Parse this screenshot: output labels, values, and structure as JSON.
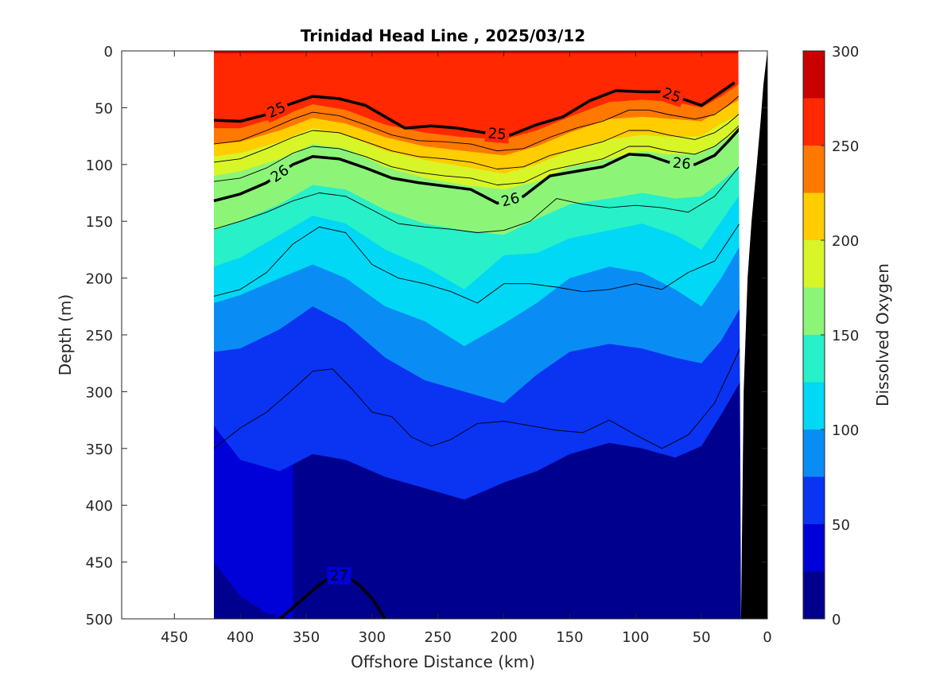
{
  "chart_data": {
    "type": "heatmap",
    "subtype": "filled-contour section",
    "title": "Trinidad Head Line , 2025/03/12",
    "xlabel": "Offshore Distance (km)",
    "ylabel": "Depth (m)",
    "colorbar_label": "Dissolved Oxygen",
    "xlim": [
      490,
      0
    ],
    "ylim": [
      500,
      0
    ],
    "x_reversed": true,
    "y_reversed": true,
    "x_ticks": [
      "450",
      "400",
      "350",
      "300",
      "250",
      "200",
      "150",
      "100",
      "50",
      "0"
    ],
    "y_ticks": [
      "0",
      "50",
      "100",
      "150",
      "200",
      "250",
      "300",
      "350",
      "400",
      "450",
      "500"
    ],
    "colorbar_ticks": [
      "0",
      "50",
      "100",
      "150",
      "200",
      "250",
      "300"
    ],
    "colorbar_levels": [
      {
        "from": 0,
        "to": 25,
        "color": "#00008e"
      },
      {
        "from": 25,
        "to": 50,
        "color": "#0000d8"
      },
      {
        "from": 50,
        "to": 75,
        "color": "#0a33f2"
      },
      {
        "from": 75,
        "to": 100,
        "color": "#0a8cf5"
      },
      {
        "from": 100,
        "to": 125,
        "color": "#00d8f5"
      },
      {
        "from": 125,
        "to": 150,
        "color": "#28f0c8"
      },
      {
        "from": 150,
        "to": 175,
        "color": "#8cf578"
      },
      {
        "from": 175,
        "to": 200,
        "color": "#d8f528"
      },
      {
        "from": 200,
        "to": 225,
        "color": "#ffcd00"
      },
      {
        "from": 225,
        "to": 250,
        "color": "#ff7800"
      },
      {
        "from": 250,
        "to": 275,
        "color": "#ff2800"
      },
      {
        "from": 275,
        "to": 300,
        "color": "#c80000"
      }
    ],
    "data_extent_km": [
      420,
      20
    ],
    "oxygen_boundaries": [
      {
        "value": 275,
        "x": [
          420,
          20
        ],
        "depth": [
          2,
          2
        ]
      },
      {
        "value": 250,
        "x": [
          420,
          400,
          370,
          345,
          320,
          290,
          260,
          230,
          200,
          175,
          150,
          120,
          95,
          70,
          50,
          35,
          20
        ],
        "depth": [
          68,
          68,
          58,
          47,
          52,
          65,
          72,
          76,
          78,
          70,
          58,
          45,
          43,
          45,
          50,
          40,
          28
        ]
      },
      {
        "value": 225,
        "x": [
          420,
          400,
          370,
          345,
          320,
          290,
          260,
          230,
          200,
          175,
          150,
          120,
          95,
          70,
          50,
          35,
          20
        ],
        "depth": [
          82,
          80,
          70,
          59,
          64,
          76,
          84,
          88,
          92,
          84,
          72,
          60,
          58,
          60,
          62,
          52,
          42
        ]
      },
      {
        "value": 200,
        "x": [
          420,
          400,
          370,
          345,
          320,
          290,
          260,
          230,
          200,
          175,
          150,
          120,
          95,
          70,
          50,
          35,
          20
        ],
        "depth": [
          93,
          90,
          80,
          68,
          74,
          88,
          96,
          102,
          108,
          100,
          88,
          78,
          74,
          76,
          75,
          64,
          55
        ]
      },
      {
        "value": 175,
        "x": [
          420,
          400,
          370,
          345,
          320,
          290,
          260,
          230,
          200,
          175,
          150,
          120,
          95,
          70,
          50,
          35,
          20
        ],
        "depth": [
          110,
          106,
          95,
          82,
          86,
          102,
          112,
          118,
          122,
          115,
          102,
          95,
          88,
          92,
          90,
          80,
          70
        ]
      },
      {
        "value": 150,
        "x": [
          420,
          400,
          370,
          345,
          320,
          290,
          260,
          230,
          200,
          175,
          150,
          120,
          95,
          70,
          50,
          35,
          20
        ],
        "depth": [
          158,
          150,
          135,
          118,
          122,
          140,
          152,
          158,
          162,
          148,
          135,
          130,
          125,
          130,
          128,
          115,
          100
        ]
      },
      {
        "value": 125,
        "x": [
          420,
          400,
          370,
          345,
          320,
          290,
          260,
          230,
          200,
          175,
          150,
          120,
          95,
          70,
          50,
          35,
          20
        ],
        "depth": [
          190,
          182,
          162,
          145,
          152,
          175,
          190,
          210,
          180,
          178,
          165,
          158,
          152,
          162,
          175,
          150,
          125
        ]
      },
      {
        "value": 100,
        "x": [
          420,
          400,
          370,
          345,
          320,
          290,
          260,
          230,
          200,
          175,
          150,
          120,
          95,
          70,
          50,
          35,
          20
        ],
        "depth": [
          222,
          215,
          200,
          188,
          200,
          225,
          238,
          260,
          240,
          222,
          200,
          190,
          195,
          210,
          225,
          200,
          170
        ]
      },
      {
        "value": 75,
        "x": [
          420,
          400,
          370,
          345,
          320,
          290,
          260,
          230,
          200,
          175,
          150,
          120,
          95,
          70,
          50,
          35,
          20
        ],
        "depth": [
          265,
          262,
          245,
          225,
          240,
          270,
          290,
          300,
          310,
          285,
          265,
          258,
          262,
          270,
          275,
          255,
          225
        ]
      },
      {
        "value": 50,
        "x": [
          420,
          400,
          370,
          345,
          320,
          290,
          260,
          230,
          200,
          175,
          150,
          120,
          95,
          70,
          50,
          35,
          20
        ],
        "depth": [
          330,
          360,
          370,
          355,
          360,
          375,
          385,
          395,
          380,
          370,
          355,
          345,
          350,
          358,
          348,
          320,
          290
        ]
      },
      {
        "value": 25,
        "x": [
          420,
          400,
          380,
          360
        ],
        "depth": [
          450,
          480,
          495,
          500
        ]
      }
    ],
    "density_isolines": [
      {
        "label": "25",
        "bold": true,
        "x": [
          420,
          400,
          380,
          365,
          345,
          325,
          305,
          290,
          275,
          255,
          235,
          215,
          195,
          175,
          155,
          135,
          115,
          95,
          80,
          65,
          50,
          35,
          25
        ],
        "depth": [
          61,
          62,
          56,
          48,
          40,
          42,
          48,
          58,
          68,
          66,
          68,
          72,
          74,
          65,
          58,
          44,
          35,
          36,
          36,
          42,
          48,
          36,
          28
        ]
      },
      {
        "label": "26",
        "bold": true,
        "x": [
          420,
          400,
          380,
          360,
          345,
          325,
          305,
          285,
          265,
          245,
          225,
          205,
          185,
          165,
          145,
          125,
          105,
          90,
          75,
          55,
          40,
          30,
          20
        ],
        "depth": [
          132,
          126,
          116,
          100,
          93,
          95,
          103,
          112,
          116,
          119,
          122,
          134,
          128,
          110,
          106,
          102,
          91,
          92,
          98,
          100,
          92,
          80,
          67
        ]
      },
      {
        "label": "27",
        "bold": true,
        "x": [
          370,
          355,
          340,
          330,
          320,
          310,
          300,
          290
        ],
        "depth": [
          500,
          485,
          470,
          462,
          462,
          470,
          482,
          500
        ]
      },
      {
        "label": "",
        "bold": false,
        "x": [
          420,
          400,
          380,
          360,
          345,
          325,
          305,
          285,
          265,
          245,
          225,
          205,
          185,
          165,
          145,
          125,
          105,
          90,
          75,
          55,
          40,
          30,
          20
        ],
        "depth": [
          82,
          79,
          70,
          60,
          54,
          57,
          65,
          74,
          79,
          80,
          82,
          88,
          86,
          76,
          68,
          62,
          52,
          52,
          56,
          60,
          56,
          48,
          38
        ]
      },
      {
        "label": "",
        "bold": false,
        "x": [
          420,
          400,
          380,
          360,
          345,
          325,
          305,
          285,
          265,
          245,
          225,
          205,
          185,
          165,
          145,
          125,
          105,
          90,
          75,
          55,
          40,
          30,
          20
        ],
        "depth": [
          98,
          95,
          86,
          76,
          70,
          72,
          80,
          88,
          93,
          95,
          98,
          104,
          102,
          92,
          86,
          80,
          70,
          70,
          74,
          78,
          72,
          64,
          54
        ]
      },
      {
        "label": "",
        "bold": false,
        "x": [
          420,
          400,
          380,
          360,
          345,
          325,
          305,
          285,
          265,
          245,
          225,
          205,
          185,
          165,
          145,
          125,
          105,
          90,
          75,
          55,
          40,
          30,
          20
        ],
        "depth": [
          115,
          112,
          103,
          90,
          84,
          86,
          93,
          102,
          107,
          110,
          112,
          118,
          116,
          105,
          100,
          95,
          84,
          84,
          88,
          91,
          84,
          75,
          64
        ]
      },
      {
        "label": "",
        "bold": false,
        "x": [
          420,
          400,
          380,
          360,
          340,
          320,
          300,
          280,
          260,
          240,
          220,
          200,
          180,
          160,
          140,
          120,
          100,
          80,
          60,
          40,
          20
        ],
        "depth": [
          157,
          150,
          142,
          132,
          125,
          128,
          140,
          152,
          155,
          157,
          160,
          158,
          150,
          130,
          135,
          138,
          136,
          138,
          142,
          128,
          100
        ]
      },
      {
        "label": "",
        "bold": false,
        "x": [
          420,
          400,
          380,
          360,
          340,
          320,
          300,
          280,
          260,
          240,
          220,
          200,
          180,
          160,
          140,
          120,
          100,
          80,
          60,
          40,
          20
        ],
        "depth": [
          216,
          210,
          195,
          170,
          155,
          160,
          188,
          200,
          205,
          212,
          222,
          205,
          205,
          208,
          212,
          210,
          205,
          210,
          195,
          185,
          150
        ]
      },
      {
        "label": "",
        "bold": false,
        "x": [
          420,
          400,
          380,
          360,
          345,
          330,
          315,
          300,
          285,
          270,
          255,
          240,
          220,
          200,
          180,
          160,
          140,
          120,
          100,
          80,
          60,
          40,
          20
        ],
        "depth": [
          350,
          332,
          318,
          298,
          282,
          280,
          298,
          318,
          322,
          340,
          348,
          342,
          328,
          326,
          330,
          334,
          336,
          325,
          338,
          350,
          338,
          310,
          260
        ]
      }
    ],
    "bathymetry": {
      "x": [
        20,
        18,
        15,
        12,
        8,
        5,
        3,
        0
      ],
      "depth": [
        500,
        300,
        200,
        150,
        100,
        60,
        30,
        0
      ]
    }
  }
}
